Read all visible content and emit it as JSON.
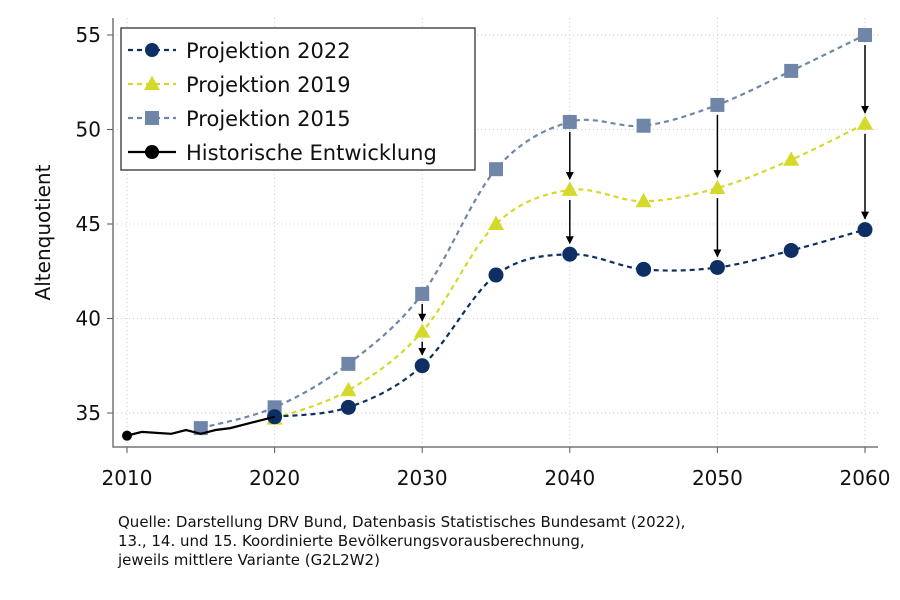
{
  "chart_data": {
    "type": "line",
    "ylabel": "Altenquotient",
    "xlabel": "",
    "xlim": [
      2009,
      2061
    ],
    "ylim": [
      33,
      56
    ],
    "xticks": [
      2010,
      2020,
      2030,
      2040,
      2050,
      2060
    ],
    "yticks": [
      35,
      40,
      45,
      50,
      55
    ],
    "grid": true,
    "legend_position": "top-left",
    "series": [
      {
        "name": "Projektion 2022",
        "color": "#0d2f63",
        "marker": "circle",
        "style": "dashed",
        "x": [
          2020,
          2025,
          2030,
          2035,
          2040,
          2045,
          2050,
          2055,
          2060
        ],
        "values": [
          34.8,
          35.3,
          37.5,
          42.3,
          43.4,
          42.6,
          42.7,
          43.6,
          44.7
        ]
      },
      {
        "name": "Projektion 2019",
        "color": "#d4d92b",
        "marker": "triangle",
        "style": "dashed",
        "x": [
          2020,
          2025,
          2030,
          2035,
          2040,
          2045,
          2050,
          2055,
          2060
        ],
        "values": [
          34.7,
          36.2,
          39.3,
          45.0,
          46.8,
          46.2,
          46.9,
          48.4,
          50.3
        ]
      },
      {
        "name": "Projektion 2015",
        "color": "#6f86a8",
        "marker": "square",
        "style": "dashed",
        "x": [
          2015,
          2020,
          2025,
          2030,
          2035,
          2040,
          2045,
          2050,
          2055,
          2060
        ],
        "values": [
          34.2,
          35.3,
          37.6,
          41.3,
          47.9,
          50.4,
          50.2,
          51.3,
          53.1,
          55.0
        ]
      },
      {
        "name": "Historische Entwicklung",
        "color": "#000000",
        "marker": "circle",
        "style": "solid",
        "x": [
          2010,
          2011,
          2012,
          2013,
          2014,
          2015,
          2016,
          2017,
          2018,
          2019,
          2020
        ],
        "values": [
          33.8,
          34.0,
          33.95,
          33.9,
          34.1,
          33.9,
          34.1,
          34.2,
          34.4,
          34.6,
          34.8
        ]
      }
    ],
    "annotations": {
      "arrows": [
        {
          "x": 2030,
          "from": 41.3,
          "to": 39.3
        },
        {
          "x": 2030,
          "from": 39.3,
          "to": 37.5
        },
        {
          "x": 2040,
          "from": 50.4,
          "to": 46.8
        },
        {
          "x": 2040,
          "from": 46.8,
          "to": 43.4
        },
        {
          "x": 2050,
          "from": 51.3,
          "to": 46.9
        },
        {
          "x": 2050,
          "from": 46.9,
          "to": 42.7
        },
        {
          "x": 2060,
          "from": 55.0,
          "to": 50.3
        },
        {
          "x": 2060,
          "from": 50.3,
          "to": 44.7
        }
      ]
    }
  },
  "source": [
    "Quelle: Darstellung DRV Bund, Datenbasis Statistisches Bundesamt (2022),",
    "13., 14. und 15. Koordinierte Bevölkerungsvorausberechnung,",
    "jeweils mittlere Variante (G2L2W2)"
  ]
}
